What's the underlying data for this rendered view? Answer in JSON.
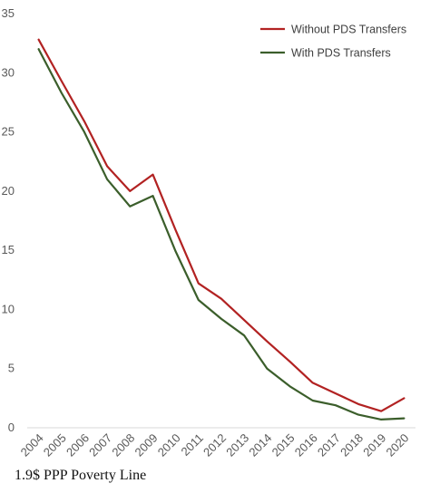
{
  "chart_data": {
    "type": "line",
    "title": "",
    "xlabel": "",
    "ylabel": "",
    "x": [
      "2004",
      "2005",
      "2006",
      "2007",
      "2008",
      "2009",
      "2010",
      "2011",
      "2012",
      "2013",
      "2014",
      "2015",
      "2016",
      "2017",
      "2018",
      "2019",
      "2020"
    ],
    "ylim": [
      0,
      35
    ],
    "yticks": [
      0,
      5,
      10,
      15,
      20,
      25,
      30,
      35
    ],
    "grid": false,
    "legend_position": "top-right",
    "series": [
      {
        "name": "Without PDS Transfers",
        "color": "#b22222",
        "values": [
          32.8,
          29.3,
          25.9,
          22.1,
          20.0,
          21.4,
          16.7,
          12.2,
          10.9,
          9.1,
          7.3,
          5.6,
          3.8,
          2.9,
          2.0,
          1.4,
          2.5
        ]
      },
      {
        "name": "With PDS Transfers",
        "color": "#3b5e2b",
        "values": [
          32.0,
          28.3,
          25.0,
          21.0,
          18.7,
          19.6,
          14.9,
          10.8,
          9.2,
          7.8,
          5.0,
          3.5,
          2.3,
          1.9,
          1.1,
          0.7,
          0.8
        ]
      }
    ]
  },
  "caption": "1.9$ PPP Poverty Line"
}
